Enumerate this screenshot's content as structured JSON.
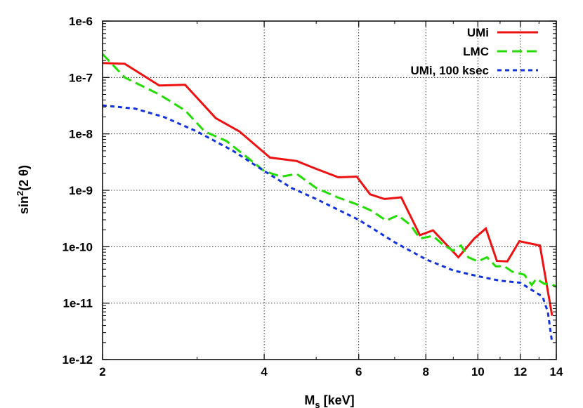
{
  "chart_data": {
    "type": "line",
    "title": "",
    "xlabel": "M",
    "xlabel_sub": "s",
    "xlabel_unit": " [keV]",
    "ylabel": "sin",
    "ylabel_sup": "2",
    "ylabel_rest": "(2 θ)",
    "x_scale": "log",
    "y_scale": "log",
    "xlim": [
      2,
      14
    ],
    "ylim": [
      1e-12,
      1e-06
    ],
    "x_ticks": [
      2,
      4,
      6,
      8,
      10,
      12,
      14
    ],
    "x_tick_labels": [
      "2",
      "4",
      "6",
      "8",
      "10",
      "12",
      "14"
    ],
    "y_ticks": [
      1e-12,
      1e-11,
      1e-10,
      1e-09,
      1e-08,
      1e-07,
      1e-06
    ],
    "y_tick_labels": [
      "1e-12",
      "1e-11",
      "1e-10",
      "1e-9",
      "1e-8",
      "1e-7",
      "1e-6"
    ],
    "grid": true,
    "legend_position": "top-right",
    "series": [
      {
        "name": "UMi",
        "color": "#ee1111",
        "dash": "solid",
        "points": [
          [
            2.0,
            1.8e-07
          ],
          [
            2.2,
            1.75e-07
          ],
          [
            2.55,
            7.2e-08
          ],
          [
            2.85,
            7.4e-08
          ],
          [
            3.25,
            1.9e-08
          ],
          [
            3.6,
            1.1e-08
          ],
          [
            4.1,
            3.8e-09
          ],
          [
            4.6,
            3.3e-09
          ],
          [
            5.0,
            2.4e-09
          ],
          [
            5.5,
            1.7e-09
          ],
          [
            5.95,
            1.75e-09
          ],
          [
            6.3,
            8.5e-10
          ],
          [
            6.7,
            7e-10
          ],
          [
            7.2,
            7.5e-10
          ],
          [
            7.8,
            1.6e-10
          ],
          [
            8.25,
            1.95e-10
          ],
          [
            9.2,
            6.5e-11
          ],
          [
            9.85,
            1.4e-10
          ],
          [
            10.35,
            2.1e-10
          ],
          [
            10.85,
            5.6e-11
          ],
          [
            11.35,
            5.5e-11
          ],
          [
            11.95,
            1.25e-10
          ],
          [
            13.05,
            1.05e-10
          ],
          [
            13.75,
            6e-12
          ]
        ]
      },
      {
        "name": "LMC",
        "color": "#22dd00",
        "dash": "long",
        "points": [
          [
            2.0,
            2.6e-07
          ],
          [
            2.2,
            1e-07
          ],
          [
            2.55,
            5e-08
          ],
          [
            2.85,
            2.6e-08
          ],
          [
            3.1,
            1.1e-08
          ],
          [
            3.4,
            7.5e-09
          ],
          [
            3.75,
            3.6e-09
          ],
          [
            4.0,
            2.2e-09
          ],
          [
            4.3,
            1.75e-09
          ],
          [
            4.6,
            1.95e-09
          ],
          [
            5.0,
            1.1e-09
          ],
          [
            5.5,
            7.4e-10
          ],
          [
            6.0,
            5.5e-10
          ],
          [
            6.35,
            4.3e-10
          ],
          [
            6.75,
            2.9e-10
          ],
          [
            7.1,
            3.6e-10
          ],
          [
            7.5,
            2.4e-10
          ],
          [
            7.8,
            1.4e-10
          ],
          [
            8.25,
            1.55e-10
          ],
          [
            8.6,
            1.1e-10
          ],
          [
            9.0,
            8.5e-11
          ],
          [
            9.3,
            1.05e-10
          ],
          [
            9.6,
            6.5e-11
          ],
          [
            10.0,
            5.5e-11
          ],
          [
            10.4,
            6.5e-11
          ],
          [
            10.8,
            4.5e-11
          ],
          [
            11.2,
            4.5e-11
          ],
          [
            11.6,
            3.6e-11
          ],
          [
            12.2,
            3.2e-11
          ],
          [
            12.6,
            2.1e-11
          ],
          [
            12.85,
            2.7e-11
          ],
          [
            13.3,
            2.2e-11
          ],
          [
            13.7,
            2.2e-11
          ],
          [
            14.0,
            1.95e-11
          ]
        ]
      },
      {
        "name": "UMi, 100 ksec",
        "color": "#1133dd",
        "dash": "short",
        "points": [
          [
            2.0,
            3.2e-08
          ],
          [
            2.3,
            2.8e-08
          ],
          [
            2.6,
            2e-08
          ],
          [
            3.0,
            1.1e-08
          ],
          [
            3.5,
            5e-09
          ],
          [
            4.0,
            2.2e-09
          ],
          [
            4.5,
            1.1e-09
          ],
          [
            5.0,
            7e-10
          ],
          [
            6.0,
            3e-10
          ],
          [
            7.0,
            1.2e-10
          ],
          [
            8.0,
            6e-11
          ],
          [
            9.0,
            3.8e-11
          ],
          [
            10.0,
            3e-11
          ],
          [
            11.0,
            2.5e-11
          ],
          [
            12.0,
            2.3e-11
          ],
          [
            12.5,
            1.8e-11
          ],
          [
            13.2,
            1.3e-11
          ],
          [
            13.5,
            7e-12
          ],
          [
            13.75,
            2e-12
          ]
        ]
      }
    ]
  }
}
